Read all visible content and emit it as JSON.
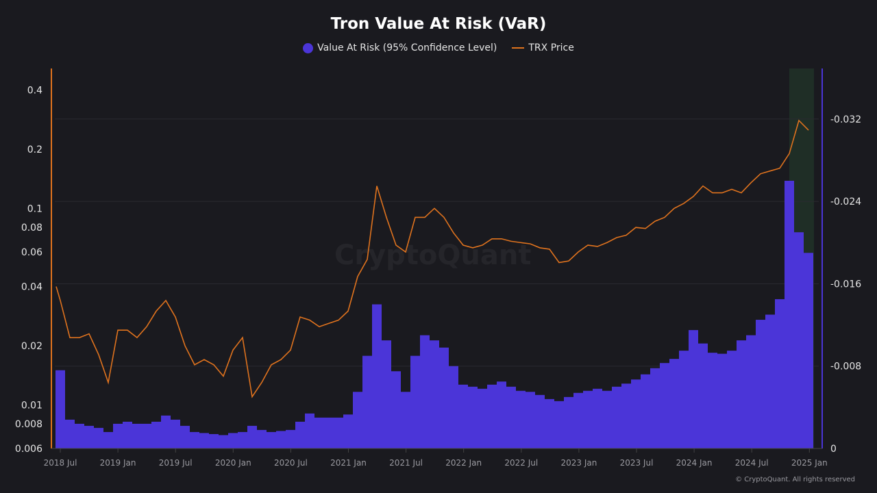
{
  "chart_data": {
    "type": "bar+line",
    "title": "Tron Value At Risk (VaR)",
    "legend": {
      "placement": "top-center"
    },
    "x_ticks": [
      "2018 Jul",
      "2019 Jan",
      "2019 Jul",
      "2020 Jan",
      "2020 Jul",
      "2021 Jan",
      "2021 Jul",
      "2022 Jan",
      "2022 Jul",
      "2023 Jan",
      "2023 Jul",
      "2024 Jan",
      "2024 Jul",
      "2025 Jan"
    ],
    "left_axis": {
      "scale": "log",
      "ticks": [
        "0.4",
        "0.2",
        "0.1",
        "0.08",
        "0.06",
        "0.04",
        "0.02",
        "0.01",
        "0.008",
        "0.006"
      ],
      "range": [
        0.006,
        0.4
      ]
    },
    "right_axis": {
      "scale": "linear",
      "inverted": true,
      "ticks": [
        "-0.032",
        "-0.024",
        "-0.016",
        "-0.008",
        "0"
      ],
      "range": [
        0,
        -0.036
      ]
    },
    "highlight_region": [
      "2024-11",
      "2025-01"
    ],
    "months": [
      "2018-06",
      "2018-07",
      "2018-08",
      "2018-09",
      "2018-10",
      "2018-11",
      "2018-12",
      "2019-01",
      "2019-02",
      "2019-03",
      "2019-04",
      "2019-05",
      "2019-06",
      "2019-07",
      "2019-08",
      "2019-09",
      "2019-10",
      "2019-11",
      "2019-12",
      "2020-01",
      "2020-02",
      "2020-03",
      "2020-04",
      "2020-05",
      "2020-06",
      "2020-07",
      "2020-08",
      "2020-09",
      "2020-10",
      "2020-11",
      "2020-12",
      "2021-01",
      "2021-02",
      "2021-03",
      "2021-04",
      "2021-05",
      "2021-06",
      "2021-07",
      "2021-08",
      "2021-09",
      "2021-10",
      "2021-11",
      "2021-12",
      "2022-01",
      "2022-02",
      "2022-03",
      "2022-04",
      "2022-05",
      "2022-06",
      "2022-07",
      "2022-08",
      "2022-09",
      "2022-10",
      "2022-11",
      "2022-12",
      "2023-01",
      "2023-02",
      "2023-03",
      "2023-04",
      "2023-05",
      "2023-06",
      "2023-07",
      "2023-08",
      "2023-09",
      "2023-10",
      "2023-11",
      "2023-12",
      "2024-01",
      "2024-02",
      "2024-03",
      "2024-04",
      "2024-05",
      "2024-06",
      "2024-07",
      "2024-08",
      "2024-09",
      "2024-10",
      "2024-11",
      "2024-12",
      "2025-01"
    ],
    "series": [
      {
        "name": "Value At Risk (95% Confidence Level)",
        "type": "bar",
        "axis": "right",
        "color": "#4b35d8",
        "values": [
          -0.0076,
          -0.004,
          -0.0028,
          -0.0024,
          -0.0022,
          -0.002,
          -0.0016,
          -0.0024,
          -0.0026,
          -0.0024,
          -0.0024,
          -0.0026,
          -0.0032,
          -0.0028,
          -0.0022,
          -0.0016,
          -0.0015,
          -0.0014,
          -0.0013,
          -0.0015,
          -0.0016,
          -0.0022,
          -0.0018,
          -0.0016,
          -0.0017,
          -0.0018,
          -0.0026,
          -0.0034,
          -0.003,
          -0.003,
          -0.003,
          -0.0033,
          -0.0055,
          -0.009,
          -0.014,
          -0.0105,
          -0.0075,
          -0.0055,
          -0.009,
          -0.011,
          -0.0105,
          -0.0098,
          -0.008,
          -0.0062,
          -0.006,
          -0.0058,
          -0.0062,
          -0.0065,
          -0.006,
          -0.0056,
          -0.0055,
          -0.0052,
          -0.0048,
          -0.0046,
          -0.005,
          -0.0054,
          -0.0056,
          -0.0058,
          -0.0056,
          -0.006,
          -0.0063,
          -0.0067,
          -0.0072,
          -0.0078,
          -0.0083,
          -0.0087,
          -0.0095,
          -0.0115,
          -0.0102,
          -0.0093,
          -0.0092,
          -0.0095,
          -0.0105,
          -0.011,
          -0.0125,
          -0.013,
          -0.0145,
          -0.026,
          -0.021,
          -0.019
        ]
      },
      {
        "name": "TRX Price",
        "type": "line",
        "axis": "left",
        "color": "#e0731e",
        "values": [
          0.04,
          0.034,
          0.022,
          0.022,
          0.023,
          0.018,
          0.013,
          0.024,
          0.024,
          0.022,
          0.025,
          0.03,
          0.034,
          0.028,
          0.02,
          0.016,
          0.017,
          0.016,
          0.014,
          0.019,
          0.022,
          0.011,
          0.013,
          0.016,
          0.017,
          0.019,
          0.028,
          0.027,
          0.025,
          0.026,
          0.027,
          0.03,
          0.045,
          0.055,
          0.13,
          0.09,
          0.065,
          0.06,
          0.09,
          0.09,
          0.1,
          0.09,
          0.075,
          0.065,
          0.063,
          0.065,
          0.07,
          0.07,
          0.068,
          0.067,
          0.066,
          0.063,
          0.062,
          0.053,
          0.054,
          0.06,
          0.065,
          0.064,
          0.067,
          0.071,
          0.073,
          0.08,
          0.079,
          0.086,
          0.09,
          0.1,
          0.106,
          0.115,
          0.13,
          0.12,
          0.12,
          0.125,
          0.12,
          0.135,
          0.15,
          0.155,
          0.16,
          0.19,
          0.28,
          0.25
        ]
      }
    ]
  },
  "watermark": "CryptoQuant",
  "credit": "© CryptoQuant. All rights reserved"
}
